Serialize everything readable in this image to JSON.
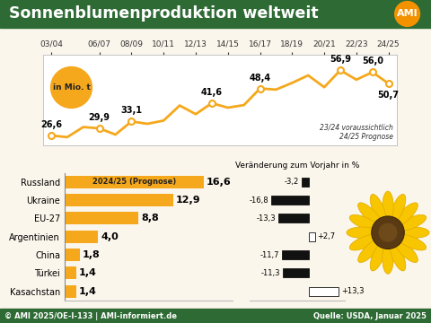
{
  "title": "Sonnenblumenproduktion weltweit",
  "logo": "AMI",
  "footer": "© AMI 2025/OE-I-133 | AMI-informiert.de",
  "source": "Quelle: USDA, Januar 2025",
  "chart_data": [
    {
      "type": "line",
      "y_label": "in Mio. t",
      "categories": [
        "03/04",
        null,
        null,
        "06/07",
        null,
        "08/09",
        null,
        "10/11",
        null,
        "12/13",
        null,
        "14/15",
        null,
        "16/17",
        null,
        "18/19",
        null,
        "20/21",
        null,
        "22/23",
        null,
        "24/25"
      ],
      "values": [
        26.6,
        25.8,
        30.5,
        29.9,
        27.0,
        33.1,
        32.0,
        33.5,
        40.5,
        36.5,
        41.6,
        39.5,
        40.7,
        48.4,
        47.9,
        51.0,
        54.5,
        49.0,
        56.9,
        52.5,
        56.0,
        50.7
      ],
      "value_labels": [
        "26,6",
        null,
        null,
        "29,9",
        null,
        "33,1",
        null,
        null,
        null,
        null,
        "41,6",
        null,
        null,
        "48,4",
        null,
        null,
        null,
        null,
        "56,9",
        null,
        "56,0",
        "50,7"
      ],
      "color": "#f5a81c",
      "marker": "o",
      "data_labels": true,
      "ylim": [
        22,
        64
      ],
      "yticks": [],
      "tick_labels": "x",
      "annotations": [
        "23/24 voraussichtlich",
        "24/25 Prognose"
      ]
    },
    {
      "type": "bar",
      "orientation": "horizontal",
      "categories": [
        "Russland",
        "Ukraine",
        "EU-27",
        "Argentinien",
        "China",
        "Türkei",
        "Kasachstan"
      ],
      "values": [
        16.6,
        12.9,
        8.8,
        4.0,
        1.8,
        1.4,
        1.4
      ],
      "value_labels": [
        "16,6",
        "12,9",
        "8,8",
        "4,0",
        "1,8",
        "1,4",
        "1,4"
      ],
      "color": "#f5a81c",
      "data_labels": true,
      "annotations": [
        "2024/25 (Prognose)"
      ],
      "xlim": [
        0,
        20
      ],
      "xticks": [],
      "tick_labels": "y"
    },
    {
      "type": "bar",
      "orientation": "horizontal",
      "title": "Veränderung zum Vorjahr in %",
      "values": [
        -3.2,
        -16.8,
        -13.3,
        2.7,
        -11.7,
        -11.3,
        13.3
      ],
      "value_labels": [
        "-3,2",
        "-16,8",
        "-13,3",
        "+2,7",
        "-11,7",
        "-11,3",
        "+13,3"
      ],
      "colors": [
        "#111111",
        "#111111",
        "#111111",
        "#ffffff",
        "#111111",
        "#111111",
        "#ffffff"
      ],
      "data_labels": true,
      "xlim": [
        -26,
        16
      ],
      "xticks": [],
      "tick_labels": false
    }
  ]
}
